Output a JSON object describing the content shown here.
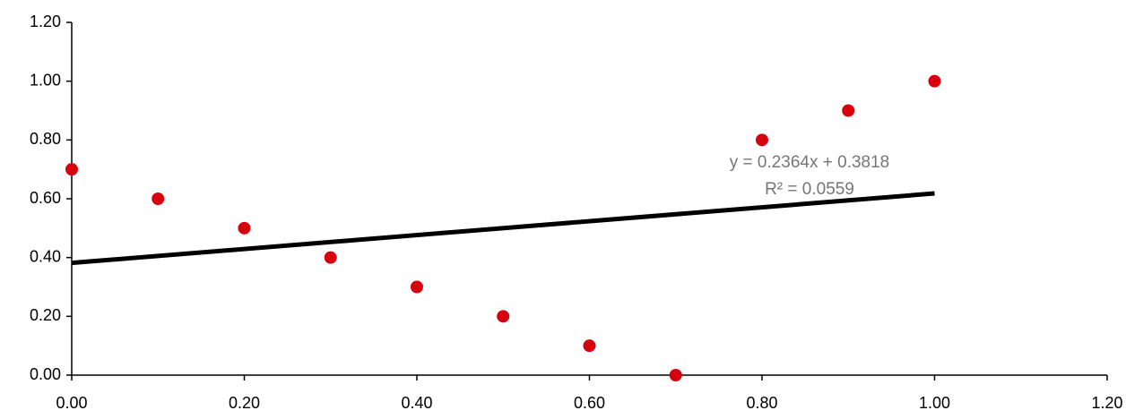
{
  "chart_data": {
    "type": "scatter",
    "x": [
      0,
      0.1,
      0.2,
      0.3,
      0.4,
      0.5,
      0.6,
      0.7,
      0.8,
      0.9,
      1.0
    ],
    "series": [
      {
        "color": "#d7000f",
        "values": [
          0.7,
          0.6,
          0.5,
          0.4,
          0.3,
          0.2,
          0.1,
          0,
          0.8,
          0.9,
          1.0
        ]
      }
    ],
    "xlim": [
      0,
      1.2
    ],
    "ylim": [
      0,
      1.2
    ],
    "xticks": [
      {
        "value": 0,
        "label": "0.00"
      },
      {
        "value": 0.2,
        "label": "0.20"
      },
      {
        "value": 0.4,
        "label": "0.40"
      },
      {
        "value": 0.6,
        "label": "0.60"
      },
      {
        "value": 0.8,
        "label": "0.80"
      },
      {
        "value": 1.0,
        "label": "1.00"
      },
      {
        "value": 1.2,
        "label": "1.20"
      }
    ],
    "yticks": [
      {
        "value": 0,
        "label": "0.00"
      },
      {
        "value": 0.2,
        "label": "0.20"
      },
      {
        "value": 0.4,
        "label": "0.40"
      },
      {
        "value": 0.6,
        "label": "0.60"
      },
      {
        "value": 0.8,
        "label": "0.80"
      },
      {
        "value": 1.0,
        "label": "1.00"
      },
      {
        "value": 1.2,
        "label": "1.20"
      }
    ],
    "grid": false,
    "trendline": {
      "slope": 0.2364,
      "intercept": 0.3818,
      "color": "#000000",
      "equation": "y = 0.2364x + 0.3818",
      "r_squared": "R² = 0.0559"
    }
  }
}
